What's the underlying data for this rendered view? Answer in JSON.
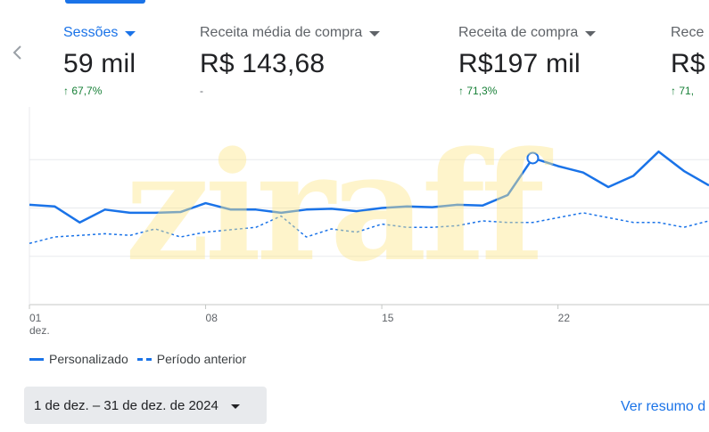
{
  "metrics": [
    {
      "label": "Sessões",
      "value": "59 mil",
      "change": "67,7%",
      "change_arrow": "↑",
      "active": true
    },
    {
      "label": "Receita média de compra",
      "value": "R$ 143,68",
      "change": "-",
      "change_arrow": "",
      "active": false
    },
    {
      "label": "Receita de compra",
      "value": "R$197 mil",
      "change": "71,3%",
      "change_arrow": "↑",
      "active": false
    },
    {
      "label": "Rece",
      "value": "R$",
      "change": "71,",
      "change_arrow": "↑",
      "active": false
    }
  ],
  "watermark": "ziraff",
  "chart_data": {
    "type": "line",
    "x": [
      1,
      2,
      3,
      4,
      5,
      6,
      7,
      8,
      9,
      10,
      11,
      12,
      13,
      14,
      15,
      16,
      17,
      18,
      19,
      20,
      21,
      22,
      23,
      24,
      25,
      26,
      27,
      28
    ],
    "x_ticks": [
      {
        "x": 1,
        "label": "01",
        "sublabel": "dez."
      },
      {
        "x": 8,
        "label": "08",
        "sublabel": ""
      },
      {
        "x": 15,
        "label": "15",
        "sublabel": ""
      },
      {
        "x": 22,
        "label": "22",
        "sublabel": ""
      }
    ],
    "series": [
      {
        "name": "Personalizado",
        "style": "solid",
        "color": "#1a73e8",
        "values": [
          62,
          61,
          51,
          59,
          57,
          57,
          57.5,
          63,
          59,
          59,
          57,
          59,
          59.5,
          58,
          60,
          61,
          60.5,
          62,
          61.5,
          68,
          91,
          86,
          82,
          73,
          80,
          95,
          83,
          74
        ]
      },
      {
        "name": "Período anterior",
        "style": "dashed",
        "color": "#1a73e8",
        "values": [
          38,
          42,
          43,
          44,
          43,
          47,
          42,
          45,
          46.5,
          48,
          55,
          42,
          47,
          45,
          50,
          48,
          48,
          49,
          52,
          51,
          51,
          54,
          57,
          54,
          51,
          51,
          48,
          52
        ]
      }
    ],
    "highlight": {
      "series": 0,
      "x": 21
    },
    "ylim": [
      0,
      120
    ],
    "grid": true
  },
  "legend": [
    {
      "label": "Personalizado",
      "style": "solid"
    },
    {
      "label": "Período anterior",
      "style": "dashed"
    }
  ],
  "date_range": "1 de dez. – 31 de dez. de 2024",
  "view_link": "Ver resumo d"
}
